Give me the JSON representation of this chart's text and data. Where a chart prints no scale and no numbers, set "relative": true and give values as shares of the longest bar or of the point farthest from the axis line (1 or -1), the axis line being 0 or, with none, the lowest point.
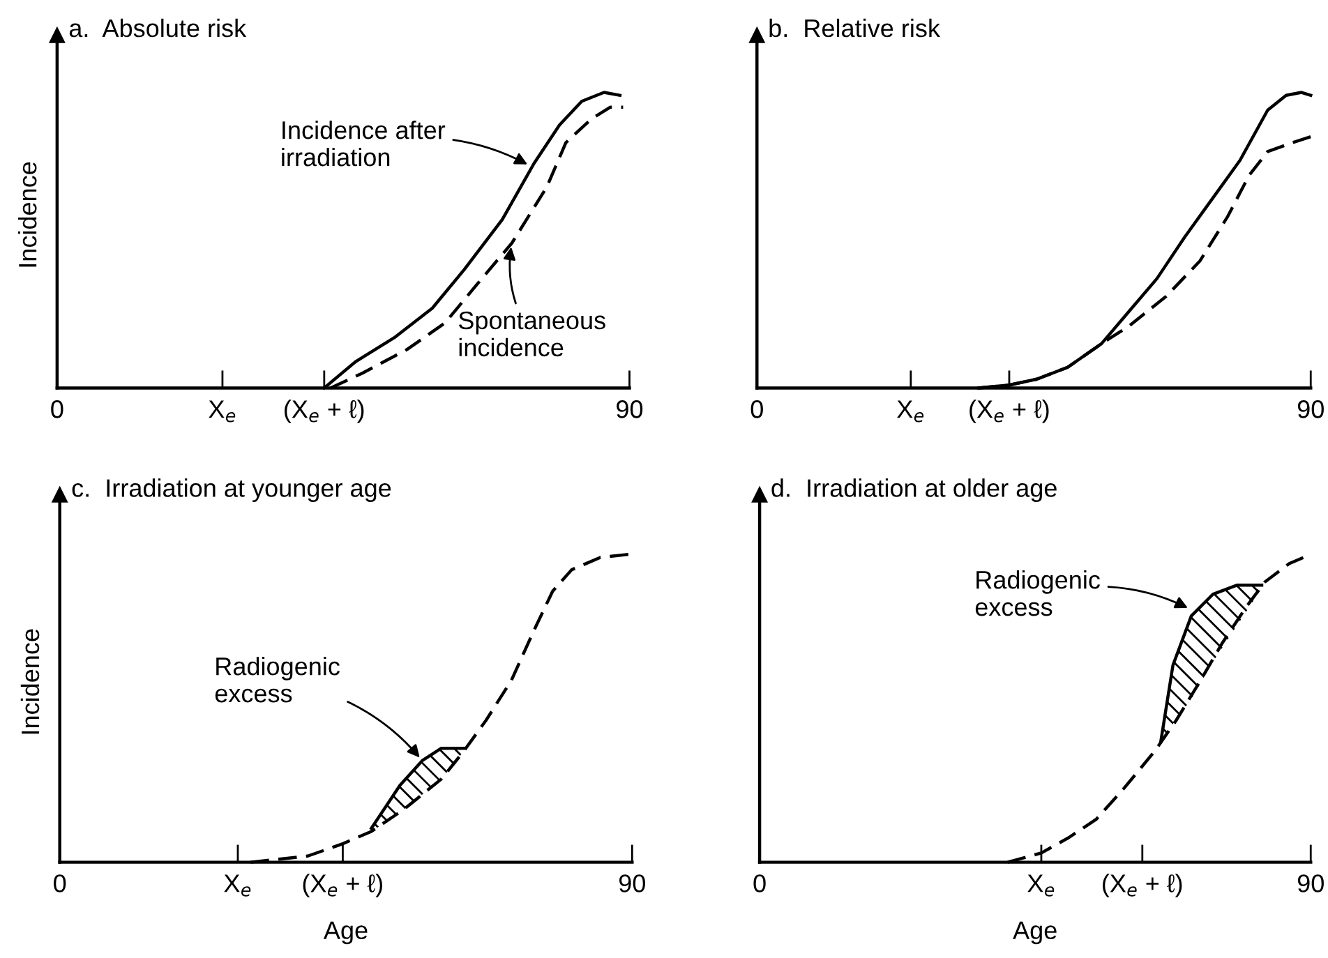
{
  "chart_data": [
    {
      "type": "line",
      "title": "a.  Absolute risk",
      "ylabel": "Incidence",
      "relative": true,
      "tick_labels": "x",
      "xlim": [
        0,
        90
      ],
      "xticks": [
        0,
        {
          "value": 26,
          "label": "X$_{e}$"
        },
        {
          "value": 42,
          "label": "(X$_{e}$ + ℓ)"
        },
        90
      ],
      "series": [
        {
          "color": "#000000",
          "line_style": "solid",
          "x": [
            42,
            47,
            53,
            59,
            64,
            70,
            75,
            79,
            82.5,
            86,
            88.5
          ],
          "values": [
            0,
            0.09,
            0.17,
            0.27,
            0.4,
            0.57,
            0.76,
            0.89,
            0.97,
            1,
            0.99
          ]
        },
        {
          "color": "#000000",
          "line_style": "dashed",
          "x": [
            43,
            48,
            55,
            61,
            66,
            71.5,
            77,
            80,
            84,
            87,
            89
          ],
          "values": [
            0,
            0.05,
            0.13,
            0.22,
            0.35,
            0.49,
            0.68,
            0.83,
            0.91,
            0.95,
            0.95
          ]
        }
      ],
      "annotations": [
        {
          "text": "Incidence after\nirradiation",
          "x": 74.5,
          "y": 0.75
        },
        {
          "text": "Spontaneous\nincidence",
          "x": 71.5,
          "y": 0.49
        }
      ]
    },
    {
      "type": "line",
      "title": "b.  Relative risk",
      "relative": true,
      "tick_labels": "x",
      "xlim": [
        0,
        90
      ],
      "xticks": [
        0,
        {
          "value": 25,
          "label": "X$_{e}$"
        },
        {
          "value": 41,
          "label": "(X$_{e}$ + ℓ)"
        },
        90
      ],
      "series": [
        {
          "color": "#000000",
          "line_style": "solid",
          "x": [
            36,
            41,
            45.5,
            50.5,
            56,
            60.5,
            65,
            69.5,
            74,
            78.5,
            83,
            86,
            88.5,
            90
          ],
          "values": [
            0,
            0.01,
            0.03,
            0.07,
            0.15,
            0.26,
            0.37,
            0.51,
            0.64,
            0.77,
            0.94,
            0.99,
            1,
            0.99
          ]
        },
        {
          "color": "#000000",
          "line_style": "dashed",
          "x": [
            36,
            41,
            45.5,
            50.5,
            56,
            60.5,
            66.5,
            72,
            76.5,
            80,
            83,
            87,
            90
          ],
          "values": [
            0,
            0.01,
            0.03,
            0.07,
            0.15,
            0.21,
            0.31,
            0.43,
            0.58,
            0.72,
            0.8,
            0.83,
            0.85
          ]
        }
      ]
    },
    {
      "type": "line",
      "title": "c.  Irradiation at younger age",
      "xlabel": "Age",
      "ylabel": "Incidence",
      "relative": true,
      "tick_labels": "x",
      "xlim": [
        0,
        90
      ],
      "xticks": [
        0,
        {
          "value": 28,
          "label": "X$_{e}$"
        },
        {
          "value": 44.5,
          "label": "(X$_{e}$ + ℓ)"
        },
        90
      ],
      "series": [
        {
          "color": "#000000",
          "line_style": "dashed",
          "x": [
            30,
            34.5,
            39,
            44.5,
            49,
            54,
            60,
            63.5,
            67,
            71,
            74.5,
            77.5,
            80.5,
            85,
            89.5
          ],
          "values": [
            0,
            0.01,
            0.02,
            0.06,
            0.1,
            0.17,
            0.27,
            0.36,
            0.46,
            0.59,
            0.75,
            0.88,
            0.95,
            0.99,
            1
          ]
        },
        {
          "color": "#000000",
          "line_style": "solid",
          "x": [
            49,
            53.5,
            57,
            60,
            63.5
          ],
          "values": [
            0.11,
            0.25,
            0.33,
            0.37,
            0.37
          ],
          "lower": [
            0.1,
            0.16,
            0.22,
            0.27,
            0.36
          ],
          "upper": [
            0.11,
            0.25,
            0.33,
            0.37,
            0.37
          ]
        }
      ],
      "annotations": [
        {
          "text": "Radiogenic\nexcess",
          "x": 57,
          "y": 0.33
        }
      ]
    },
    {
      "type": "line",
      "title": "d.  Irradiation at older age",
      "xlabel": "Age",
      "relative": true,
      "tick_labels": "x",
      "xlim": [
        0,
        90
      ],
      "xticks": [
        0,
        {
          "value": 46,
          "label": "X$_{e}$"
        },
        {
          "value": 62.5,
          "label": "(X$_{e}$ + ℓ)"
        },
        90
      ],
      "series": [
        {
          "color": "#000000",
          "line_style": "dashed",
          "x": [
            40.5,
            46,
            50.5,
            55,
            59.5,
            64.5,
            68,
            72,
            75.5,
            79.5,
            82.5,
            86.5,
            90
          ],
          "values": [
            0,
            0.03,
            0.08,
            0.14,
            0.24,
            0.36,
            0.46,
            0.59,
            0.71,
            0.83,
            0.91,
            0.97,
            1
          ]
        },
        {
          "color": "#000000",
          "line_style": "solid",
          "x": [
            65.5,
            67.5,
            70.5,
            74,
            78,
            82
          ],
          "values": [
            0.39,
            0.64,
            0.8,
            0.87,
            0.9,
            0.9
          ],
          "lower": [
            0.38,
            0.45,
            0.53,
            0.65,
            0.77,
            0.89
          ],
          "upper": [
            0.39,
            0.64,
            0.8,
            0.87,
            0.9,
            0.9
          ]
        }
      ],
      "annotations": [
        {
          "text": "Radiogenic\nexcess",
          "x": 70.5,
          "y": 0.82
        }
      ]
    }
  ]
}
